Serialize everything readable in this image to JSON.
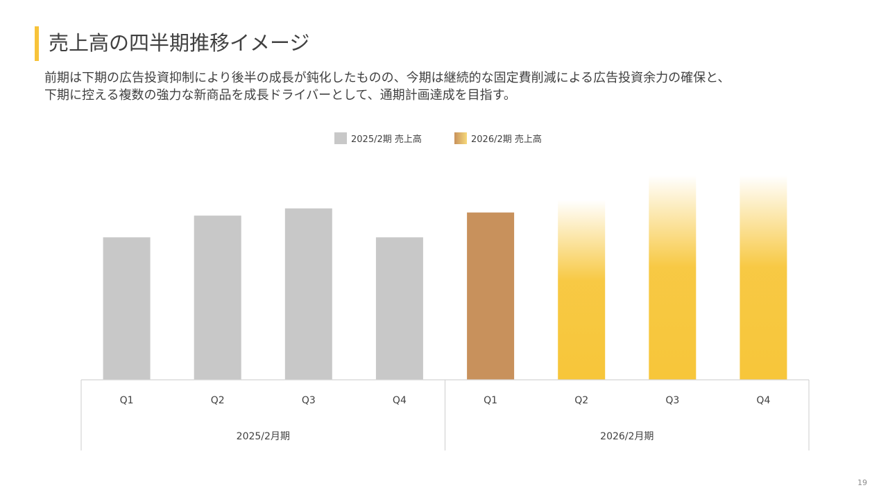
{
  "slide": {
    "title": "売上高の四半期推移イメージ",
    "subtitle_lines": [
      "前期は下期の広告投資抑制により後半の成長が鈍化したものの、今期は継続的な固定費削減による広告投資余力の確保と、",
      "下期に控える複数の強力な新商品を成長ドライバーとして、通期計画達成を目指す。"
    ],
    "page_number": "19"
  },
  "chart_data": {
    "type": "bar",
    "title": "",
    "xlabel": "",
    "ylabel": "",
    "legend_position": "top-center",
    "grid": false,
    "ylim": [
      0,
      100
    ],
    "categories": [
      "Q1",
      "Q2",
      "Q3",
      "Q4",
      "Q1",
      "Q2",
      "Q3",
      "Q4"
    ],
    "groups": [
      {
        "label": "2025/2月期",
        "categories": [
          "Q1",
          "Q2",
          "Q3",
          "Q4"
        ]
      },
      {
        "label": "2026/2月期",
        "categories": [
          "Q1",
          "Q2",
          "Q3",
          "Q4"
        ]
      }
    ],
    "series": [
      {
        "name": "2025/2期 売上高",
        "color": "#c8c8c8",
        "values": [
          69,
          79.5,
          83,
          69,
          null,
          null,
          null,
          null
        ]
      },
      {
        "name": "2026/2期 売上高",
        "color": "#c8915c",
        "forecast_color": "#f7c63a",
        "values": [
          null,
          null,
          null,
          null,
          81,
          87,
          99,
          99
        ],
        "forecast": [
          false,
          false,
          false,
          false,
          false,
          true,
          true,
          true
        ]
      }
    ]
  }
}
